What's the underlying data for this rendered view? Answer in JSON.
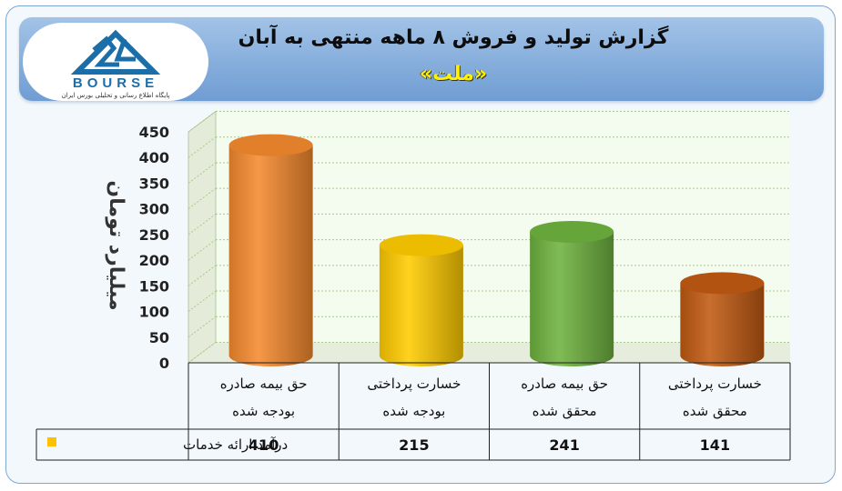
{
  "header": {
    "title": "گزارش تولید و فروش ۸ ماهه منتهی به آبان",
    "subtitle": "«ملت»"
  },
  "logo": {
    "name": "BOURSE",
    "tagline": "پایگاه اطلاع رسانی و تحلیلی بورس ایران",
    "mark": "24"
  },
  "colors": {
    "bar_orange": "#f58a2e",
    "bar_yellow": "#ffcc00",
    "bar_green": "#6fb33f",
    "bar_brown": "#c15a12",
    "legend_key": "#ffc000",
    "header_blue": "#8fb4e3",
    "subtitle_yellow": "#fff200"
  },
  "chart_data": {
    "type": "bar",
    "style": "3d-cylinder",
    "ylabel": "میلیارد تومان",
    "ylim": [
      0,
      450
    ],
    "yticks": [
      0,
      50,
      100,
      150,
      200,
      250,
      300,
      350,
      400,
      450
    ],
    "grid": true,
    "categories": [
      [
        "حق بیمه صادره",
        "بودجه شده"
      ],
      [
        "خسارت پرداختی",
        "بودجه شده"
      ],
      [
        "حق بیمه صادره",
        "محقق شده"
      ],
      [
        "خسارت پرداختی",
        "محقق شده"
      ]
    ],
    "series": [
      {
        "name": "درآمد ارائه خدمات",
        "values": [
          410,
          215,
          241,
          141
        ]
      }
    ],
    "legend": "data-table-left"
  }
}
